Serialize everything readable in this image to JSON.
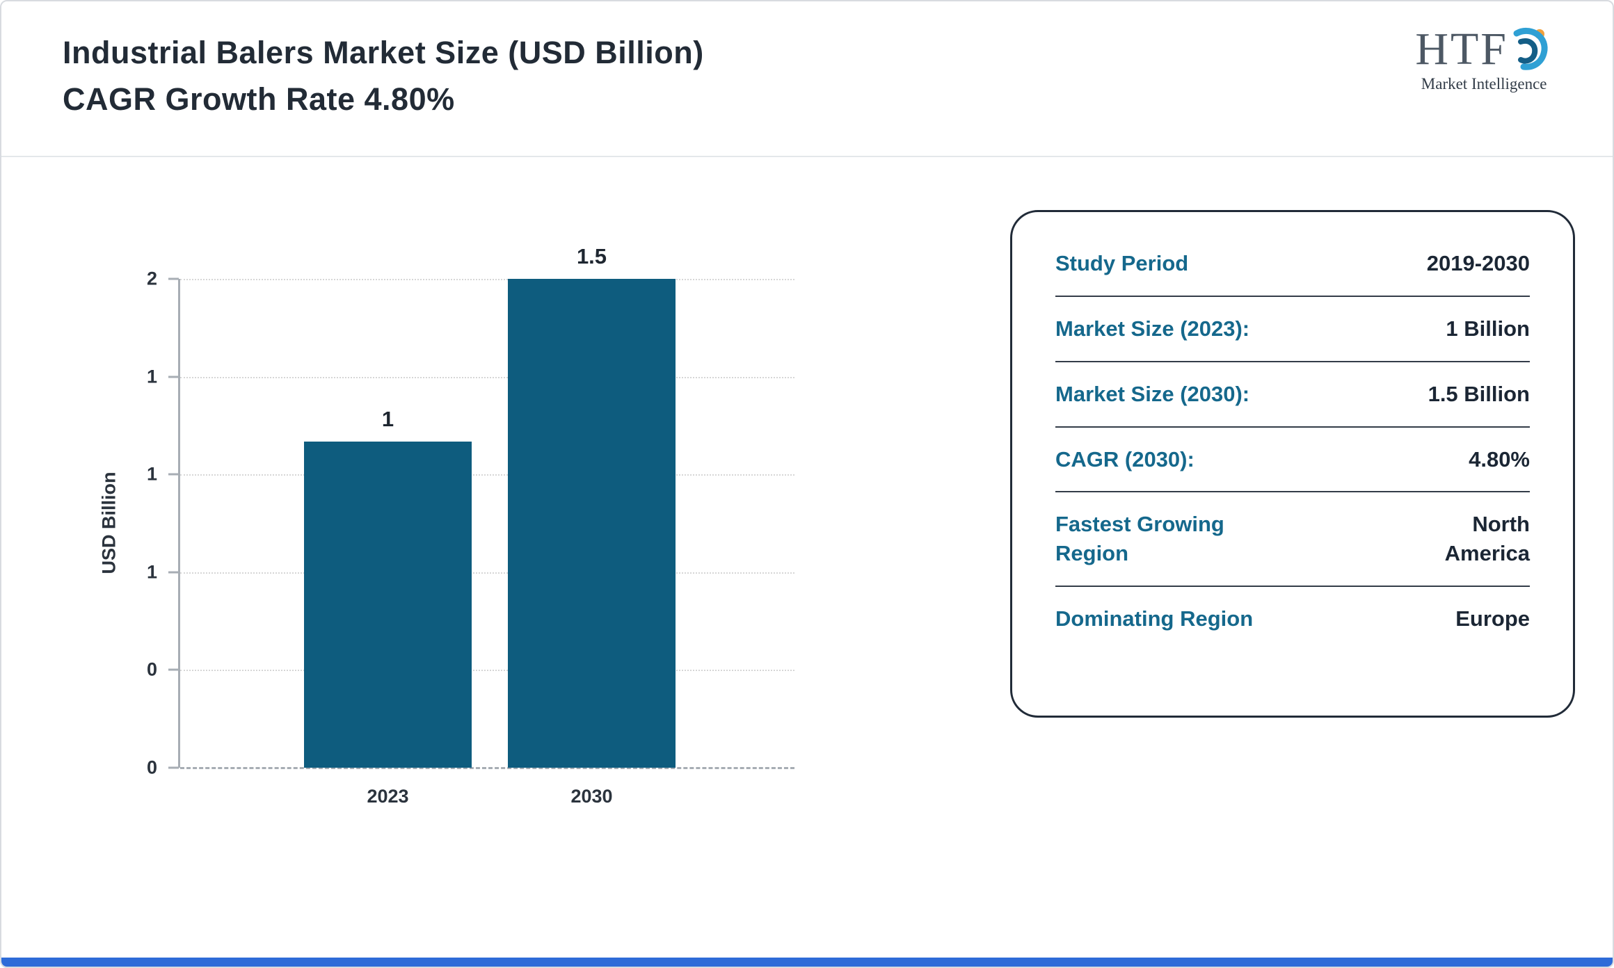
{
  "header": {
    "title_line1": "Industrial Balers Market Size (USD Billion)",
    "title_line2": "CAGR Growth Rate 4.80%"
  },
  "logo": {
    "text": "HTF",
    "subtext": "Market Intelligence",
    "swirl_colors": {
      "light_blue": "#2fa0d4",
      "dark_blue": "#145e86",
      "orange": "#f0a03c"
    }
  },
  "chart_data": {
    "type": "bar",
    "title": "Industrial Balers Market Size (USD Billion) CAGR Growth Rate 4.80%",
    "categories": [
      "2023",
      "2030"
    ],
    "values": [
      1,
      1.5
    ],
    "value_labels": [
      "1",
      "1.5"
    ],
    "xlabel": "",
    "ylabel": "USD Billion",
    "ylim": [
      0,
      1.5
    ],
    "yticks_top_to_bottom": [
      "2",
      "1",
      "1",
      "1",
      "0",
      "0"
    ],
    "grid": "dotted-horizontal",
    "legend": false,
    "bar_color": "#0e5c7e"
  },
  "summary_card": {
    "rows": [
      {
        "label": "Study Period",
        "value": "2019-2030",
        "stacked": false
      },
      {
        "label": "Market Size (2023):",
        "value": "1 Billion",
        "stacked": false
      },
      {
        "label": "Market Size (2030):",
        "value": "1.5 Billion",
        "stacked": false
      },
      {
        "label": "CAGR (2030):",
        "value": "4.80%",
        "stacked": false
      },
      {
        "label": "Fastest Growing Region",
        "value": "North America",
        "stacked": true
      },
      {
        "label": "Dominating Region",
        "value": "Europe",
        "stacked": false
      }
    ]
  },
  "colors": {
    "bar": "#0e5c7e",
    "card_label_teal": "#15688c",
    "value_dark": "#1b2634",
    "footer_accent": "#2e6bd8",
    "title_text": "#222b36"
  }
}
